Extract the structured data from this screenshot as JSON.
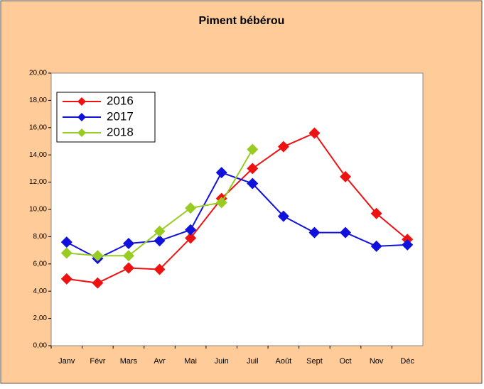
{
  "chart_data": {
    "type": "line",
    "title": "Piment bébérou",
    "categories": [
      "Janv",
      "Févr",
      "Mars",
      "Avr",
      "Mai",
      "Juin",
      "Juil",
      "Août",
      "Sept",
      "Oct",
      "Nov",
      "Déc"
    ],
    "series": [
      {
        "name": "2016",
        "color": "#ee1111",
        "values": [
          4.9,
          4.6,
          5.7,
          5.6,
          7.9,
          10.8,
          13.0,
          14.6,
          15.6,
          12.4,
          9.7,
          7.8
        ]
      },
      {
        "name": "2017",
        "color": "#1111dd",
        "values": [
          7.6,
          6.4,
          7.5,
          7.7,
          8.5,
          12.7,
          11.9,
          9.5,
          8.3,
          8.3,
          7.3,
          7.4
        ]
      },
      {
        "name": "2018",
        "color": "#99cc22",
        "values": [
          6.8,
          6.6,
          6.6,
          8.4,
          10.1,
          10.5,
          14.4,
          null,
          null,
          null,
          null,
          null
        ]
      }
    ],
    "ylim": [
      0,
      20
    ],
    "yticks": [
      {
        "value": 0,
        "label": "0,00"
      },
      {
        "value": 2,
        "label": "2,00"
      },
      {
        "value": 4,
        "label": "4,00"
      },
      {
        "value": 6,
        "label": "6,00"
      },
      {
        "value": 8,
        "label": "8,00"
      },
      {
        "value": 10,
        "label": "10,00"
      },
      {
        "value": 12,
        "label": "12,00"
      },
      {
        "value": 14,
        "label": "14,00"
      },
      {
        "value": 16,
        "label": "16,00"
      },
      {
        "value": 18,
        "label": "18,00"
      },
      {
        "value": 20,
        "label": "20,00"
      }
    ],
    "legend": "upper left"
  }
}
